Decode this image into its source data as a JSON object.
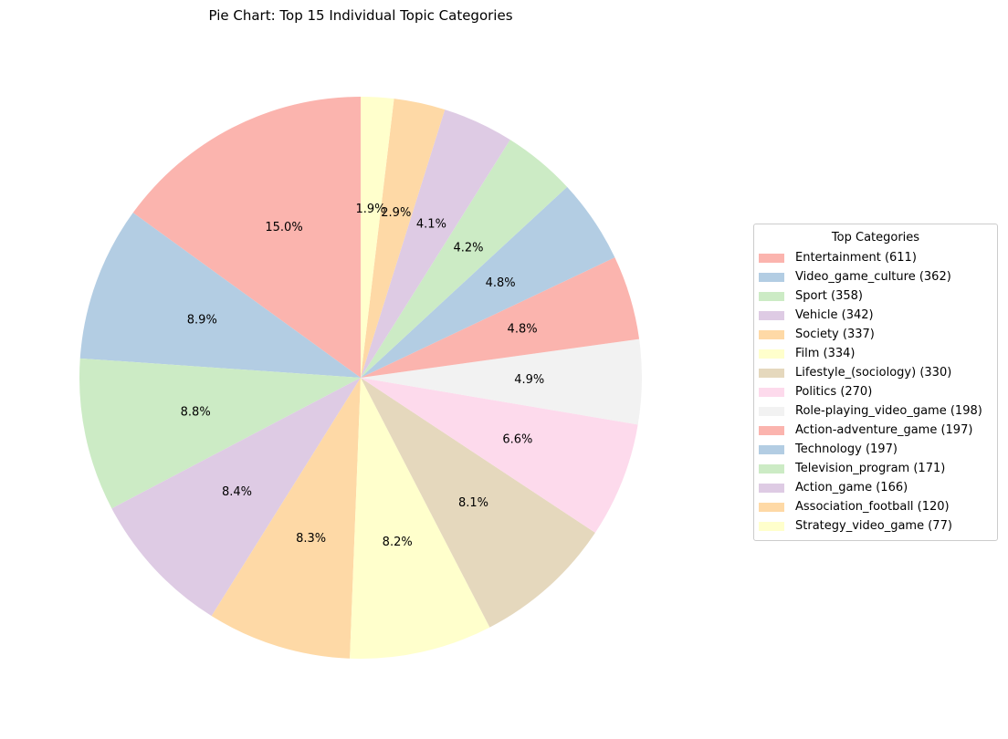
{
  "chart_data": {
    "type": "pie",
    "title": "Pie Chart: Top 15 Individual Topic Categories",
    "legend_title": "Top Categories",
    "legend_position": "right",
    "start_angle": 90,
    "direction": "counterclockwise",
    "slices": [
      {
        "label": "Entertainment (611)",
        "value": 611,
        "pct": "15.0%",
        "color": "#fbb4ae"
      },
      {
        "label": "Video_game_culture (362)",
        "value": 362,
        "pct": "8.9%",
        "color": "#b3cde3"
      },
      {
        "label": "Sport (358)",
        "value": 358,
        "pct": "8.8%",
        "color": "#ccebc5"
      },
      {
        "label": "Vehicle (342)",
        "value": 342,
        "pct": "8.4%",
        "color": "#decbe4"
      },
      {
        "label": "Society (337)",
        "value": 337,
        "pct": "8.3%",
        "color": "#fed9a6"
      },
      {
        "label": "Film (334)",
        "value": 334,
        "pct": "8.2%",
        "color": "#ffffcc"
      },
      {
        "label": "Lifestyle_(sociology) (330)",
        "value": 330,
        "pct": "8.1%",
        "color": "#e5d8bd"
      },
      {
        "label": "Politics (270)",
        "value": 270,
        "pct": "6.6%",
        "color": "#fddaec"
      },
      {
        "label": "Role-playing_video_game (198)",
        "value": 198,
        "pct": "4.9%",
        "color": "#f2f2f2"
      },
      {
        "label": "Action-adventure_game (197)",
        "value": 197,
        "pct": "4.8%",
        "color": "#fbb4ae"
      },
      {
        "label": "Technology (197)",
        "value": 197,
        "pct": "4.8%",
        "color": "#b3cde3"
      },
      {
        "label": "Television_program (171)",
        "value": 171,
        "pct": "4.2%",
        "color": "#ccebc5"
      },
      {
        "label": "Action_game (166)",
        "value": 166,
        "pct": "4.1%",
        "color": "#decbe4"
      },
      {
        "label": "Association_football (120)",
        "value": 120,
        "pct": "2.9%",
        "color": "#fed9a6"
      },
      {
        "label": "Strategy_video_game (77)",
        "value": 77,
        "pct": "1.9%",
        "color": "#ffffcc"
      }
    ]
  }
}
